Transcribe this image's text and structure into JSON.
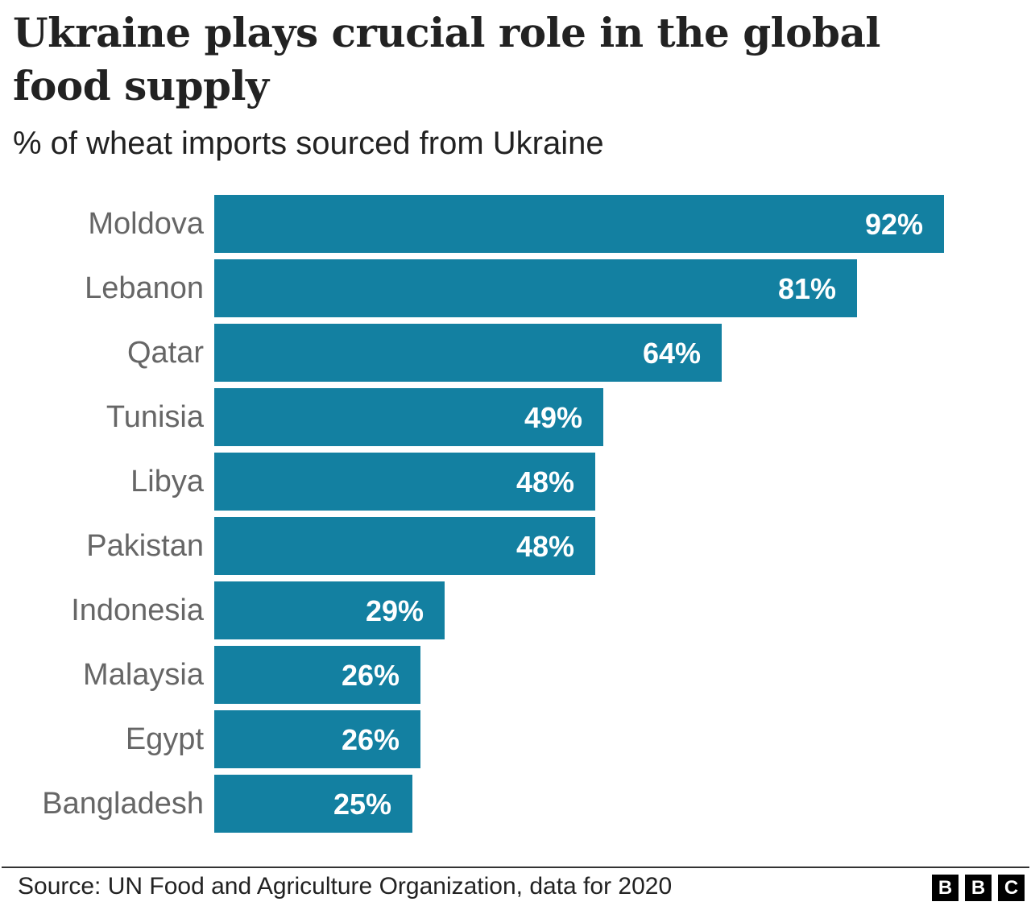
{
  "header": {
    "title": "Ukraine plays crucial role in the global food supply",
    "subtitle": "% of wheat imports sourced from Ukraine"
  },
  "footer": {
    "source": "Source: UN Food and Agriculture Organization, data for 2020",
    "logo": [
      "B",
      "B",
      "C"
    ]
  },
  "colors": {
    "bar": "#1380A1",
    "label": "#666666",
    "value_text": "#ffffff"
  },
  "chart_data": {
    "type": "bar",
    "orientation": "horizontal",
    "title": "Ukraine plays crucial role in the global food supply",
    "subtitle": "% of wheat imports sourced from Ukraine",
    "xlabel": "",
    "ylabel": "",
    "categories": [
      "Moldova",
      "Lebanon",
      "Qatar",
      "Tunisia",
      "Libya",
      "Pakistan",
      "Indonesia",
      "Malaysia",
      "Egypt",
      "Bangladesh"
    ],
    "values": [
      92,
      81,
      64,
      49,
      48,
      48,
      29,
      26,
      26,
      25
    ],
    "value_labels": [
      "92%",
      "81%",
      "64%",
      "49%",
      "48%",
      "48%",
      "29%",
      "26%",
      "26%",
      "25%"
    ],
    "xlim": [
      0,
      92
    ],
    "grid": false,
    "legend": null,
    "source": "Source: UN Food and Agriculture Organization, data for 2020"
  }
}
